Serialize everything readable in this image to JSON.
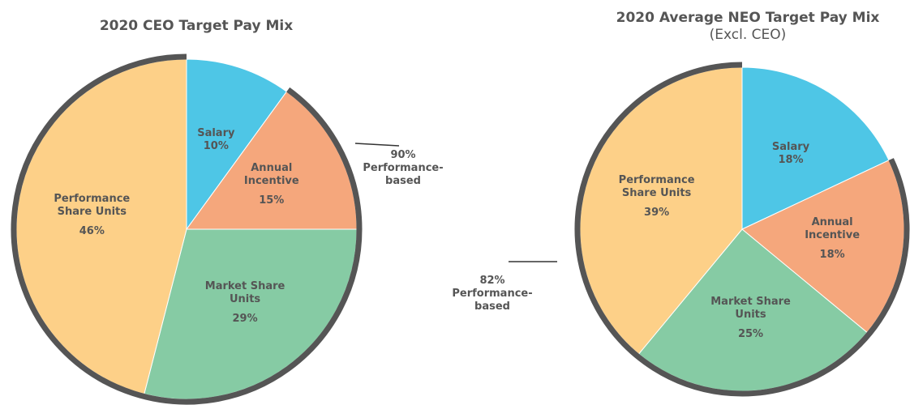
{
  "chart_data": [
    {
      "type": "pie",
      "title": "2020 CEO Target Pay Mix",
      "categories": [
        "Salary",
        "Annual Incentive",
        "Market Share Units",
        "Performance Share Units"
      ],
      "values": [
        10,
        15,
        29,
        46
      ],
      "value_labels": [
        "10%",
        "15%",
        "29%",
        "46%"
      ],
      "colors": [
        "#4ec6e6",
        "#f5a77c",
        "#86cba4",
        "#fdd088"
      ],
      "annotation": "90% Performance-based"
    },
    {
      "type": "pie",
      "title": "2020 Average NEO Target Pay Mix",
      "subtitle": "(Excl. CEO)",
      "categories": [
        "Salary",
        "Annual Incentive",
        "Market Share Units",
        "Performance Share Units"
      ],
      "values": [
        18,
        18,
        25,
        39
      ],
      "value_labels": [
        "18%",
        "18%",
        "25%",
        "39%"
      ],
      "colors": [
        "#4ec6e6",
        "#f5a77c",
        "#86cba4",
        "#fdd088"
      ],
      "annotation": "82% Performance-based"
    }
  ]
}
